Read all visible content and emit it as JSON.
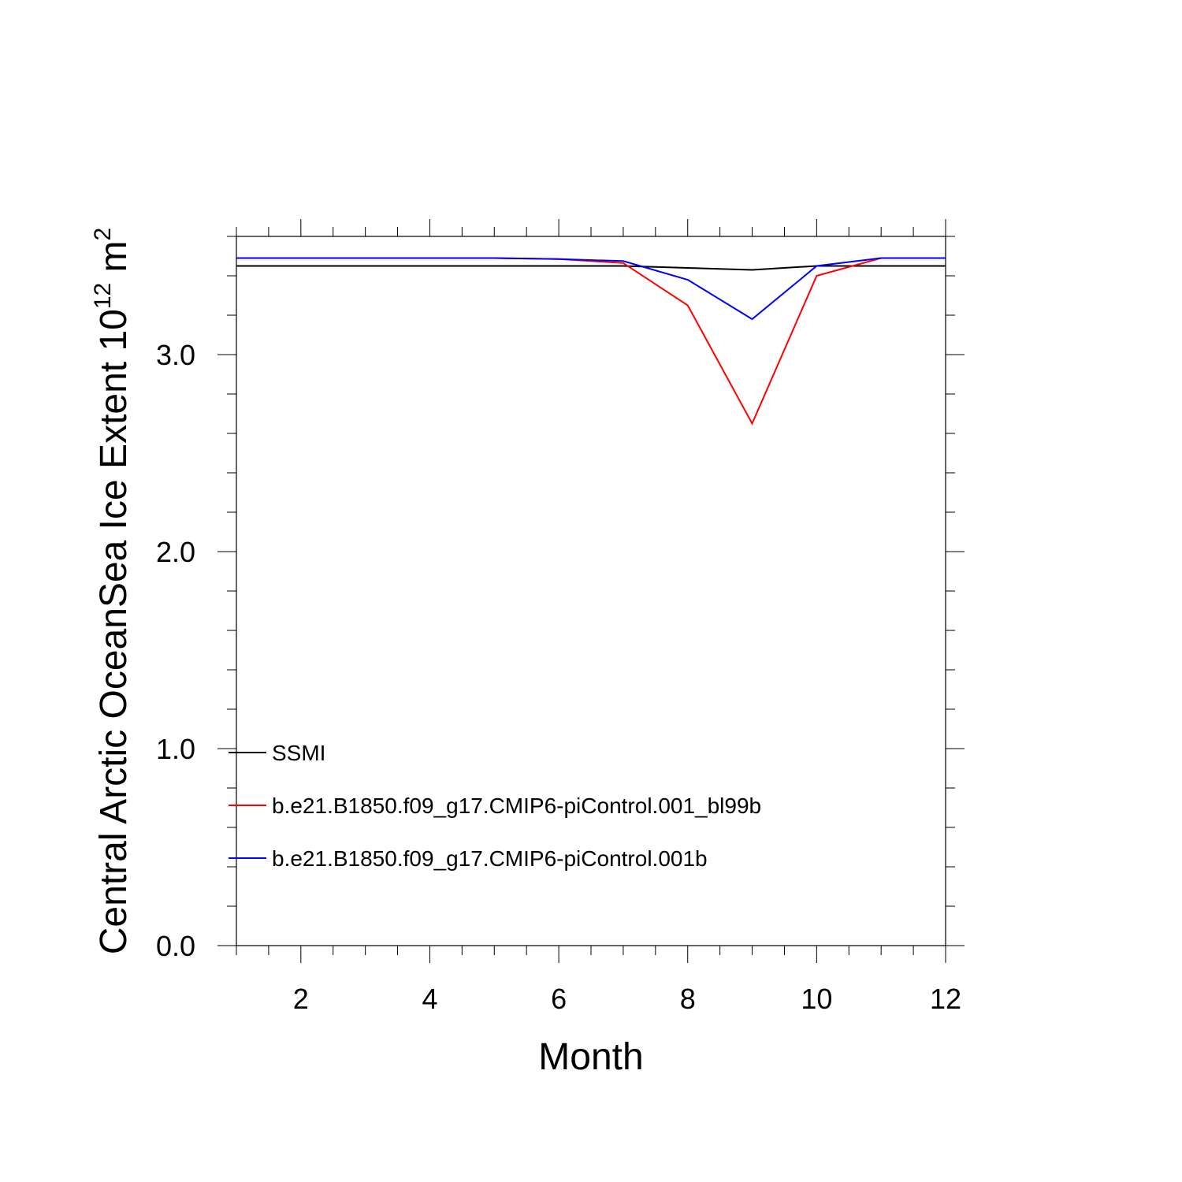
{
  "chart_data": {
    "type": "line",
    "xlabel": "Month",
    "ylabel": "Central Arctic OceanSea Ice Extent 10",
    "ylabel_sup1": "12",
    "ylabel_unit": " m",
    "ylabel_sup2": "2",
    "xlim": [
      1,
      12
    ],
    "ylim": [
      0,
      3.6
    ],
    "xticks": [
      2,
      4,
      6,
      8,
      10,
      12
    ],
    "yticks": [
      0.0,
      1.0,
      2.0,
      3.0
    ],
    "ytick_labels": [
      "0.0",
      "1.0",
      "2.0",
      "3.0"
    ],
    "x": [
      1,
      2,
      3,
      4,
      5,
      6,
      7,
      8,
      9,
      10,
      11,
      12
    ],
    "series": [
      {
        "name": "SSMI",
        "color": "#000000",
        "values": [
          3.45,
          3.45,
          3.45,
          3.45,
          3.45,
          3.45,
          3.45,
          3.44,
          3.43,
          3.45,
          3.45,
          3.45
        ]
      },
      {
        "name": "b.e21.B1850.f09_g17.CMIP6-piControl.001_bl99b",
        "color": "#ff0000",
        "values": [
          3.49,
          3.49,
          3.49,
          3.49,
          3.49,
          3.485,
          3.465,
          3.25,
          2.65,
          3.4,
          3.49,
          3.49
        ]
      },
      {
        "name": "b.e21.B1850.f09_g17.CMIP6-piControl.001b",
        "color": "#0000ff",
        "values": [
          3.49,
          3.49,
          3.49,
          3.49,
          3.49,
          3.485,
          3.475,
          3.38,
          3.18,
          3.45,
          3.49,
          3.49
        ]
      }
    ],
    "legend": "lower-left",
    "grid": false
  }
}
